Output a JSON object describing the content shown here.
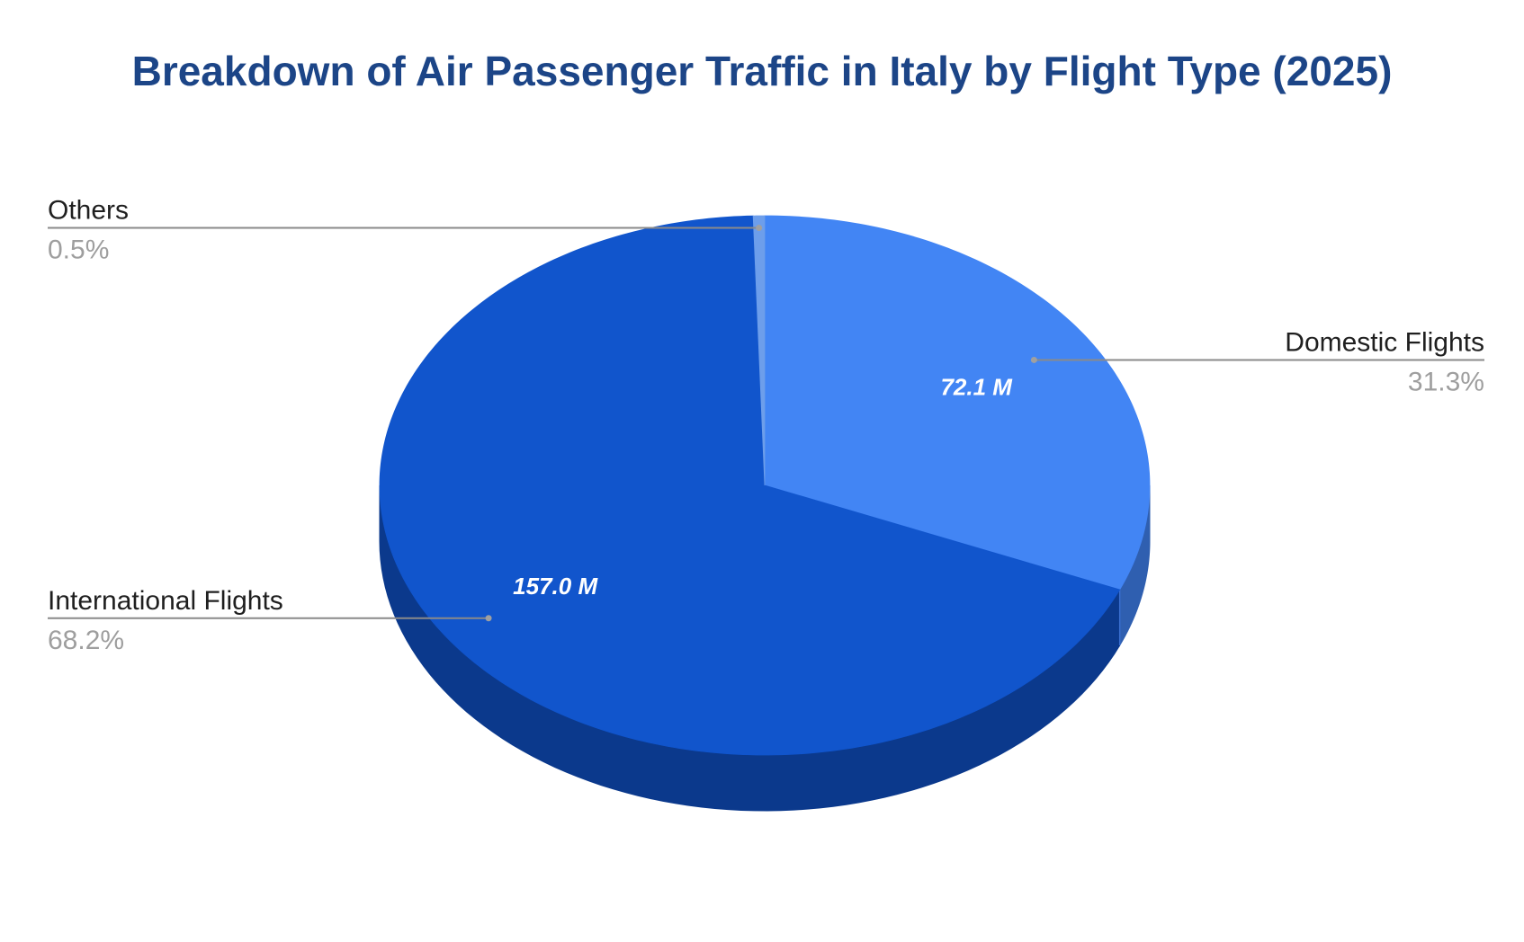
{
  "chart_data": {
    "type": "pie",
    "style": "3d",
    "title": "Breakdown of Air Passenger Traffic in Italy by Flight Type (2025)",
    "title_color": "#1c4587",
    "slices": [
      {
        "name": "Domestic Flights",
        "value_label": "72.1 M",
        "percent_label": "31.3%",
        "value": 72.1,
        "percent": 31.3,
        "color": "#4285f4",
        "side_color": "#2f5fb0"
      },
      {
        "name": "International Flights",
        "value_label": "157.0 M",
        "percent_label": "68.2%",
        "value": 157.0,
        "percent": 68.2,
        "color": "#1155cc",
        "side_color": "#0b398c"
      },
      {
        "name": "Others",
        "value_label": "",
        "percent_label": "0.5%",
        "value": 1.1,
        "percent": 0.5,
        "color": "#6d9eeb",
        "side_color": "#4a74bd"
      }
    ],
    "start_angle_deg": 0,
    "direction": "clockwise",
    "legend": "none",
    "labels": "outside with leader lines"
  }
}
